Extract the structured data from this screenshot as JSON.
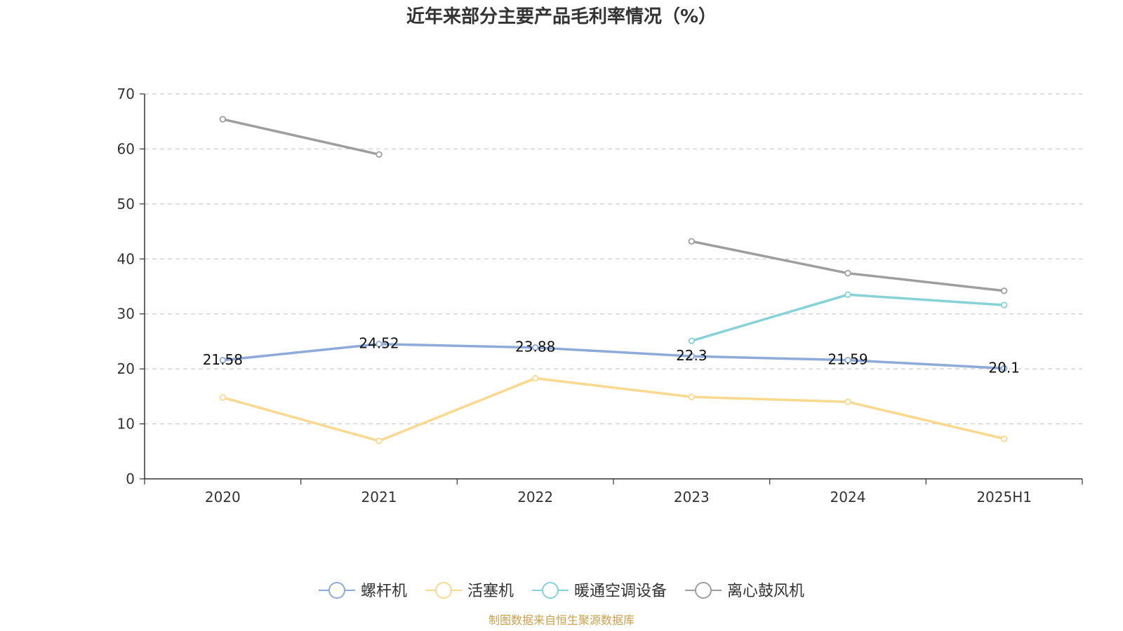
{
  "chart_data": {
    "type": "line",
    "title": "近年来部分主要产品毛利率情况（%）",
    "categories": [
      "2020",
      "2021",
      "2022",
      "2023",
      "2024",
      "2025H1"
    ],
    "ylim": [
      0,
      70
    ],
    "yticks": [
      0,
      10,
      20,
      30,
      40,
      50,
      60,
      70
    ],
    "grid": true,
    "legend_position": "bottom",
    "series": [
      {
        "name": "螺杆机",
        "color": "#8eaad9",
        "values": [
          21.58,
          24.52,
          23.88,
          22.3,
          21.59,
          20.1
        ],
        "labels": [
          "21.58",
          "24.52",
          "23.88",
          "22.3",
          "21.59",
          "20.1"
        ]
      },
      {
        "name": "活塞机",
        "color": "#fad98f",
        "values": [
          14.8,
          6.9,
          18.3,
          14.9,
          14.0,
          7.3
        ]
      },
      {
        "name": "暖通空调设备",
        "color": "#86d2d6",
        "values": [
          null,
          null,
          null,
          25.1,
          33.5,
          31.6
        ]
      },
      {
        "name": "离心鼓风机",
        "color": "#9e9e9e",
        "values": [
          65.4,
          59.0,
          null,
          43.2,
          37.4,
          34.2
        ]
      }
    ]
  },
  "source": {
    "text": "制图数据来自恒生聚源数据库",
    "color": "#c9a04e"
  }
}
